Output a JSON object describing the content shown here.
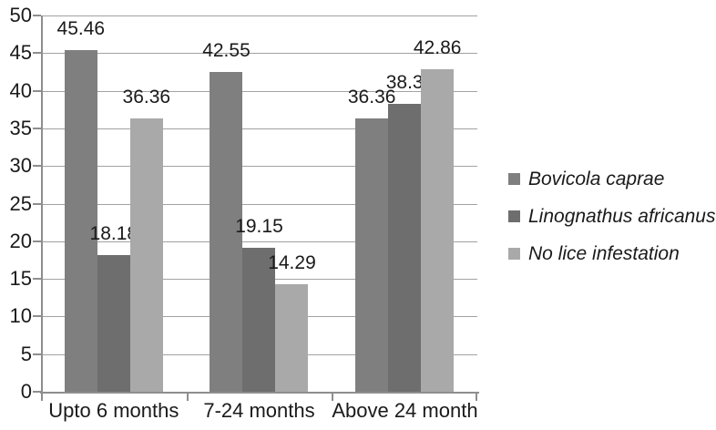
{
  "figure": {
    "background": "#ffffff"
  },
  "chart_data": {
    "type": "bar",
    "title": "",
    "xlabel": "",
    "ylabel": "",
    "categories": [
      "Upto 6 months",
      "7-24 months",
      "Above 24 month"
    ],
    "series": [
      {
        "name": "Bovicola caprae",
        "color": "#7f7f7f",
        "values": [
          45.46,
          42.55,
          36.36
        ]
      },
      {
        "name": "Linognathus africanus",
        "color": "#6e6e6e",
        "values": [
          18.18,
          19.15,
          38.3
        ]
      },
      {
        "name": "No lice infestation",
        "color": "#a9a9a9",
        "values": [
          36.36,
          14.29,
          42.86
        ]
      }
    ],
    "data_labels": [
      [
        "45.46",
        "18.18",
        "36.36"
      ],
      [
        "42.55",
        "19.15",
        "14.29"
      ],
      [
        "36.36",
        "38.3",
        "42.86"
      ]
    ],
    "ylim": [
      0,
      50
    ],
    "yticks": [
      0,
      5,
      10,
      15,
      20,
      25,
      30,
      35,
      40,
      45,
      50
    ],
    "grid": true,
    "legend_position": "right",
    "legend_style": "italic",
    "colors": {
      "gridline": "#a2a2a2",
      "axis": "#8e8e8e",
      "label_text": "#1a1a1a"
    }
  }
}
